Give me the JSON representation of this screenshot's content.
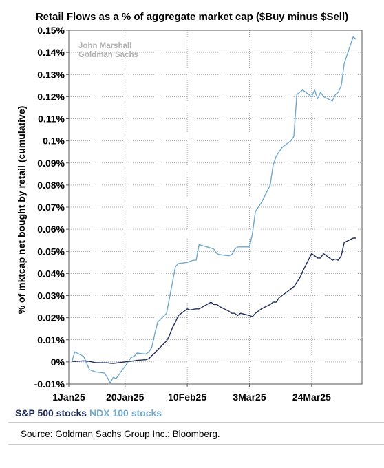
{
  "chart_data": {
    "type": "line",
    "title": "Retail Flows as a % of aggregate market cap ($Buy minus $Sell)",
    "ylabel": "% of mktcap net bought by retail (cumulative)",
    "xlabel": "",
    "ylim": [
      -0.01,
      0.15
    ],
    "yticks": [
      -0.01,
      0,
      0.01,
      0.02,
      0.03,
      0.04,
      0.05,
      0.06,
      0.07,
      0.08,
      0.09,
      0.1,
      0.11,
      0.12,
      0.13,
      0.14,
      0.15
    ],
    "ytick_labels": [
      "-0.01%",
      "0%",
      "0.01%",
      "0.02%",
      "0.03%",
      "0.04%",
      "0.05%",
      "0.06%",
      "0.07%",
      "0.08%",
      "0.09%",
      "0.1%",
      "0.11%",
      "0.12%",
      "0.13%",
      "0.14%",
      "0.15%"
    ],
    "xticks": [
      "2025-01-01",
      "2025-01-20",
      "2025-02-10",
      "2025-03-03",
      "2025-03-24"
    ],
    "xtick_labels": [
      "1Jan25",
      "20Jan25",
      "10Feb25",
      "3Mar25",
      "24Mar25"
    ],
    "xlim": [
      "2025-01-01",
      "2025-04-10"
    ],
    "annotation": [
      "John Marshall",
      "Goldman Sachs"
    ],
    "grid": true,
    "series": [
      {
        "name": "S&P 500 stocks",
        "color": "#1f2d5a",
        "points": [
          [
            "2025-01-02",
            0.0003
          ],
          [
            "2025-01-03",
            0.0002
          ],
          [
            "2025-01-06",
            0.0005
          ],
          [
            "2025-01-07",
            0.0004
          ],
          [
            "2025-01-08",
            0.0002
          ],
          [
            "2025-01-10",
            -0.0003
          ],
          [
            "2025-01-13",
            -0.0004
          ],
          [
            "2025-01-14",
            -0.0004
          ],
          [
            "2025-01-15",
            -0.0006
          ],
          [
            "2025-01-16",
            -0.0007
          ],
          [
            "2025-01-17",
            -0.0005
          ],
          [
            "2025-01-21",
            0.0002
          ],
          [
            "2025-01-22",
            0.0003
          ],
          [
            "2025-01-23",
            0.0005
          ],
          [
            "2025-01-24",
            0.0007
          ],
          [
            "2025-01-27",
            0.001
          ],
          [
            "2025-01-28",
            0.0015
          ],
          [
            "2025-01-29",
            0.0028
          ],
          [
            "2025-01-30",
            0.004
          ],
          [
            "2025-01-31",
            0.0055
          ],
          [
            "2025-02-03",
            0.0095
          ],
          [
            "2025-02-04",
            0.012
          ],
          [
            "2025-02-05",
            0.0155
          ],
          [
            "2025-02-06",
            0.018
          ],
          [
            "2025-02-07",
            0.021
          ],
          [
            "2025-02-10",
            0.024
          ],
          [
            "2025-02-11",
            0.0235
          ],
          [
            "2025-02-12",
            0.0238
          ],
          [
            "2025-02-13",
            0.024
          ],
          [
            "2025-02-14",
            0.024
          ],
          [
            "2025-02-18",
            0.027
          ],
          [
            "2025-02-19",
            0.026
          ],
          [
            "2025-02-20",
            0.026
          ],
          [
            "2025-02-21",
            0.025
          ],
          [
            "2025-02-24",
            0.023
          ],
          [
            "2025-02-25",
            0.022
          ],
          [
            "2025-02-26",
            0.022
          ],
          [
            "2025-02-27",
            0.021
          ],
          [
            "2025-02-28",
            0.022
          ],
          [
            "2025-03-03",
            0.021
          ],
          [
            "2025-03-04",
            0.0205
          ],
          [
            "2025-03-05",
            0.022
          ],
          [
            "2025-03-06",
            0.023
          ],
          [
            "2025-03-07",
            0.024
          ],
          [
            "2025-03-10",
            0.026
          ],
          [
            "2025-03-11",
            0.027
          ],
          [
            "2025-03-12",
            0.027
          ],
          [
            "2025-03-13",
            0.029
          ],
          [
            "2025-03-14",
            0.03
          ],
          [
            "2025-03-17",
            0.033
          ],
          [
            "2025-03-18",
            0.034
          ],
          [
            "2025-03-19",
            0.036
          ],
          [
            "2025-03-20",
            0.038
          ],
          [
            "2025-03-21",
            0.041
          ],
          [
            "2025-03-24",
            0.049
          ],
          [
            "2025-03-25",
            0.048
          ],
          [
            "2025-03-26",
            0.047
          ],
          [
            "2025-03-27",
            0.047
          ],
          [
            "2025-03-28",
            0.049
          ],
          [
            "2025-03-31",
            0.046
          ],
          [
            "2025-04-01",
            0.0465
          ],
          [
            "2025-04-02",
            0.046
          ],
          [
            "2025-04-03",
            0.048
          ],
          [
            "2025-04-04",
            0.054
          ],
          [
            "2025-04-07",
            0.056
          ],
          [
            "2025-04-08",
            0.056
          ]
        ]
      },
      {
        "name": "NDX 100 stocks",
        "color": "#6fa8cc",
        "points": [
          [
            "2025-01-02",
            0.0
          ],
          [
            "2025-01-03",
            0.0045
          ],
          [
            "2025-01-06",
            0.0025
          ],
          [
            "2025-01-07",
            -0.0005
          ],
          [
            "2025-01-08",
            -0.0035
          ],
          [
            "2025-01-10",
            -0.0045
          ],
          [
            "2025-01-13",
            -0.005
          ],
          [
            "2025-01-14",
            -0.007
          ],
          [
            "2025-01-15",
            -0.0095
          ],
          [
            "2025-01-16",
            -0.007
          ],
          [
            "2025-01-17",
            -0.0075
          ],
          [
            "2025-01-21",
            0.0
          ],
          [
            "2025-01-22",
            0.002
          ],
          [
            "2025-01-23",
            0.0025
          ],
          [
            "2025-01-24",
            0.004
          ],
          [
            "2025-01-27",
            0.0035
          ],
          [
            "2025-01-28",
            0.0045
          ],
          [
            "2025-01-29",
            0.0065
          ],
          [
            "2025-01-30",
            0.0125
          ],
          [
            "2025-01-31",
            0.018
          ],
          [
            "2025-02-03",
            0.022
          ],
          [
            "2025-02-04",
            0.029
          ],
          [
            "2025-02-05",
            0.036
          ],
          [
            "2025-02-06",
            0.043
          ],
          [
            "2025-02-07",
            0.0445
          ],
          [
            "2025-02-10",
            0.045
          ],
          [
            "2025-02-11",
            0.0455
          ],
          [
            "2025-02-12",
            0.046
          ],
          [
            "2025-02-13",
            0.046
          ],
          [
            "2025-02-14",
            0.053
          ],
          [
            "2025-02-18",
            0.0515
          ],
          [
            "2025-02-19",
            0.051
          ],
          [
            "2025-02-20",
            0.049
          ],
          [
            "2025-02-21",
            0.0485
          ],
          [
            "2025-02-24",
            0.048
          ],
          [
            "2025-02-25",
            0.0485
          ],
          [
            "2025-02-26",
            0.051
          ],
          [
            "2025-02-27",
            0.052
          ],
          [
            "2025-02-28",
            0.052
          ],
          [
            "2025-03-03",
            0.052
          ],
          [
            "2025-03-04",
            0.058
          ],
          [
            "2025-03-05",
            0.068
          ],
          [
            "2025-03-06",
            0.07
          ],
          [
            "2025-03-07",
            0.072
          ],
          [
            "2025-03-10",
            0.08
          ],
          [
            "2025-03-11",
            0.089
          ],
          [
            "2025-03-12",
            0.093
          ],
          [
            "2025-03-13",
            0.095
          ],
          [
            "2025-03-14",
            0.097
          ],
          [
            "2025-03-17",
            0.1
          ],
          [
            "2025-03-18",
            0.102
          ],
          [
            "2025-03-19",
            0.121
          ],
          [
            "2025-03-20",
            0.122
          ],
          [
            "2025-03-21",
            0.123
          ],
          [
            "2025-03-24",
            0.12
          ],
          [
            "2025-03-25",
            0.123
          ],
          [
            "2025-03-26",
            0.119
          ],
          [
            "2025-03-27",
            0.122
          ],
          [
            "2025-03-28",
            0.12
          ],
          [
            "2025-03-31",
            0.118
          ],
          [
            "2025-04-01",
            0.121
          ],
          [
            "2025-04-02",
            0.122
          ],
          [
            "2025-04-03",
            0.125
          ],
          [
            "2025-04-04",
            0.135
          ],
          [
            "2025-04-07",
            0.147
          ],
          [
            "2025-04-08",
            0.146
          ]
        ]
      }
    ]
  },
  "source": "Source: Goldman Sachs Group Inc.; Bloomberg."
}
